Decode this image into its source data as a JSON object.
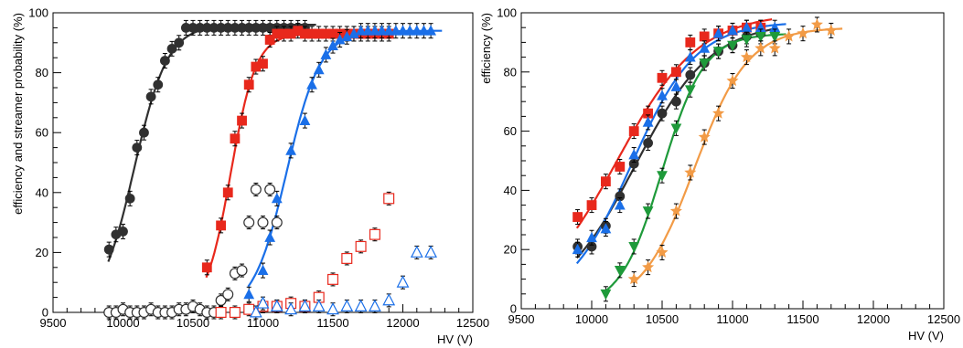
{
  "chart_data": [
    {
      "type": "scatter",
      "xlabel": "HV (V)",
      "ylabel": "efficiency and streamer probability (%)",
      "xlim": [
        9500,
        12500
      ],
      "ylim": [
        0,
        100
      ],
      "xticks": [
        9500,
        10000,
        10500,
        11000,
        11500,
        12000,
        12500
      ],
      "yticks": [
        0,
        20,
        40,
        60,
        80,
        100
      ],
      "grid": false,
      "series": [
        {
          "marker": "filled-circle",
          "color": "#303030",
          "x": [
            9900,
            9950,
            10000,
            10050,
            10100,
            10150,
            10200,
            10250,
            10300,
            10350,
            10400,
            10450,
            10500,
            10550,
            10600,
            10650,
            10700,
            10750,
            10800,
            10850,
            10900,
            10950,
            11000,
            11050,
            11100,
            11150,
            11200,
            11250,
            11300
          ],
          "y": [
            21,
            26,
            27,
            38,
            55,
            60,
            72,
            76,
            84,
            88,
            90,
            95,
            95,
            95,
            95,
            95,
            95,
            95,
            95,
            95,
            95,
            95,
            95,
            95,
            95,
            95,
            95,
            95,
            95
          ]
        },
        {
          "marker": "filled-square",
          "color": "#e8281c",
          "x": [
            10600,
            10700,
            10750,
            10800,
            10850,
            10900,
            10950,
            11000,
            11050,
            11100,
            11150,
            11200,
            11250,
            11300,
            11350,
            11400,
            11450,
            11500,
            11550,
            11600,
            11650,
            11700,
            11750,
            11800,
            11850,
            11900
          ],
          "y": [
            15,
            29,
            40,
            58,
            64,
            76,
            82,
            83,
            91,
            93,
            93,
            93,
            94,
            93,
            93,
            93,
            93,
            93,
            93,
            93,
            93,
            93,
            93,
            93,
            93,
            93
          ]
        },
        {
          "marker": "filled-triangle",
          "color": "#1a6fe8",
          "x": [
            10900,
            11000,
            11050,
            11100,
            11200,
            11300,
            11350,
            11400,
            11450,
            11500,
            11550,
            11600,
            11650,
            11700,
            11750,
            11800,
            11850,
            11900,
            11950,
            12000,
            12050,
            12100,
            12150,
            12200
          ],
          "y": [
            6,
            14,
            25,
            38,
            54,
            64,
            76,
            81,
            86,
            89,
            91,
            92,
            93,
            94,
            94,
            94,
            94,
            94,
            94,
            94,
            94,
            94,
            94,
            94
          ]
        },
        {
          "marker": "open-circle",
          "color": "#303030",
          "x": [
            9900,
            9950,
            10000,
            10050,
            10100,
            10150,
            10200,
            10250,
            10300,
            10350,
            10400,
            10450,
            10500,
            10550,
            10600,
            10650,
            10700,
            10750,
            10800,
            10850,
            10900,
            10950,
            11000,
            11050,
            11100
          ],
          "y": [
            0,
            0,
            1,
            0,
            0,
            0,
            1,
            0,
            0,
            0,
            1,
            1,
            2,
            1,
            0,
            0,
            4,
            6,
            13,
            14,
            30,
            41,
            30,
            41,
            30
          ]
        },
        {
          "marker": "open-square",
          "color": "#e8281c",
          "x": [
            10700,
            10800,
            10900,
            11000,
            11100,
            11200,
            11300,
            11400,
            11500,
            11600,
            11700,
            11800,
            11900
          ],
          "y": [
            0,
            0,
            1,
            2,
            2,
            3,
            2,
            5,
            11,
            18,
            22,
            26,
            38
          ]
        },
        {
          "marker": "open-triangle",
          "color": "#1a6fe8",
          "x": [
            10950,
            11000,
            11100,
            11200,
            11300,
            11400,
            11500,
            11600,
            11700,
            11800,
            11900,
            12000,
            12100,
            12200
          ],
          "y": [
            0,
            3,
            2,
            1,
            2,
            2,
            1,
            2,
            2,
            2,
            4,
            10,
            20,
            20
          ]
        }
      ]
    },
    {
      "type": "scatter",
      "xlabel": "HV (V)",
      "ylabel": "efficiency (%)",
      "xlim": [
        9500,
        12500
      ],
      "ylim": [
        0,
        100
      ],
      "xticks": [
        9500,
        10000,
        10500,
        11000,
        11500,
        12000,
        12500
      ],
      "yticks": [
        0,
        20,
        40,
        60,
        80,
        100
      ],
      "grid": false,
      "series": [
        {
          "marker": "filled-square",
          "color": "#e8281c",
          "x": [
            9900,
            10000,
            10100,
            10200,
            10300,
            10400,
            10500,
            10600,
            10700,
            10800,
            10900,
            11000,
            11100,
            11200
          ],
          "y": [
            31,
            35,
            43,
            48,
            60,
            66,
            78,
            80,
            90,
            92,
            93,
            94,
            95,
            95
          ]
        },
        {
          "marker": "filled-circle",
          "color": "#303030",
          "x": [
            9900,
            10000,
            10100,
            10200,
            10300,
            10400,
            10500,
            10600,
            10700,
            10800,
            10900,
            11000,
            11100,
            11200
          ],
          "y": [
            21,
            21,
            28,
            38,
            49,
            56,
            66,
            70,
            79,
            83,
            87,
            89,
            92,
            93
          ]
        },
        {
          "marker": "filled-triangle",
          "color": "#1a6fe8",
          "x": [
            9900,
            10000,
            10100,
            10200,
            10300,
            10400,
            10500,
            10600,
            10700,
            10800,
            10900,
            11000,
            11100,
            11200,
            11300
          ],
          "y": [
            20,
            24,
            27,
            35,
            52,
            63,
            72,
            75,
            85,
            88,
            93,
            94,
            95,
            95,
            95
          ]
        },
        {
          "marker": "filled-inverted-triangle",
          "color": "#1e9a3a",
          "x": [
            10100,
            10200,
            10300,
            10400,
            10500,
            10600,
            10700,
            10800,
            10900,
            11000,
            11100,
            11200,
            11300
          ],
          "y": [
            5,
            13,
            21,
            33,
            45,
            61,
            74,
            83,
            87,
            89,
            91,
            92,
            92
          ]
        },
        {
          "marker": "filled-star",
          "color": "#f29b46",
          "x": [
            10300,
            10400,
            10500,
            10600,
            10700,
            10800,
            10900,
            11000,
            11100,
            11200,
            11300,
            11400,
            11500,
            11600,
            11700
          ],
          "y": [
            10,
            14,
            19,
            33,
            46,
            58,
            66,
            77,
            85,
            88,
            88,
            92,
            93,
            96,
            94
          ]
        }
      ]
    }
  ]
}
